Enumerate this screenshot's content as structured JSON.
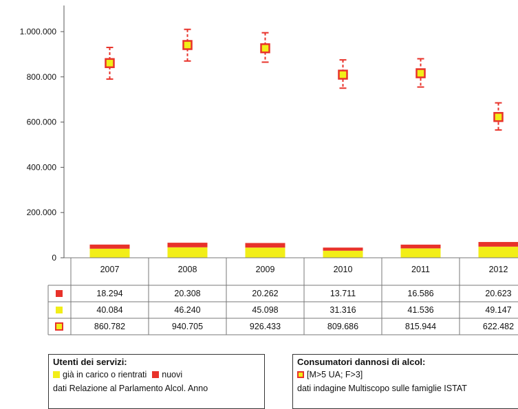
{
  "chart_data": {
    "type": "bar",
    "categories": [
      "2007",
      "2008",
      "2009",
      "2010",
      "2011",
      "2012"
    ],
    "series": [
      {
        "key": "nuovi",
        "values": [
          18294,
          20308,
          20262,
          13711,
          16586,
          20623
        ],
        "color": "#e8322a"
      },
      {
        "key": "in_carico",
        "values": [
          40084,
          46240,
          45098,
          31316,
          41536,
          49147
        ],
        "color": "#f2ee18"
      },
      {
        "key": "dannosi",
        "values": [
          860782,
          940705,
          926433,
          809686,
          815944,
          622482
        ],
        "color": "#e8322a",
        "fill": "#f2ee18"
      }
    ],
    "errorbar_range": [
      [
        790000,
        930000
      ],
      [
        870000,
        1010000
      ],
      [
        865000,
        995000
      ],
      [
        750000,
        875000
      ],
      [
        755000,
        880000
      ],
      [
        565000,
        685000
      ]
    ],
    "table_values": [
      [
        "18.294",
        "20.308",
        "20.262",
        "13.711",
        "16.586",
        "20.623"
      ],
      [
        "40.084",
        "46.240",
        "45.098",
        "31.316",
        "41.536",
        "49.147"
      ],
      [
        "860.782",
        "940.705",
        "926.433",
        "809.686",
        "815.944",
        "622.482"
      ]
    ],
    "yticks": [
      0,
      200000,
      400000,
      600000,
      800000,
      1000000
    ],
    "ytick_labels": [
      "0",
      "200.000",
      "400.000",
      "600.000",
      "800.000",
      "1.000.000"
    ],
    "ylim": [
      0,
      1080000
    ],
    "grid": false,
    "legend_position": "bottom"
  },
  "legend_left": {
    "title": "Utenti dei servizi:",
    "item_yellow": "già in carico o rientrati",
    "item_red": "nuovi",
    "source": "dati Relazione al Parlamento Alcol. Anno"
  },
  "legend_right": {
    "title": "Consumatori dannosi di alcol:",
    "item": "[M>5 UA; F>3]",
    "source": "dati indagine Multiscopo sulle famiglie ISTAT"
  }
}
